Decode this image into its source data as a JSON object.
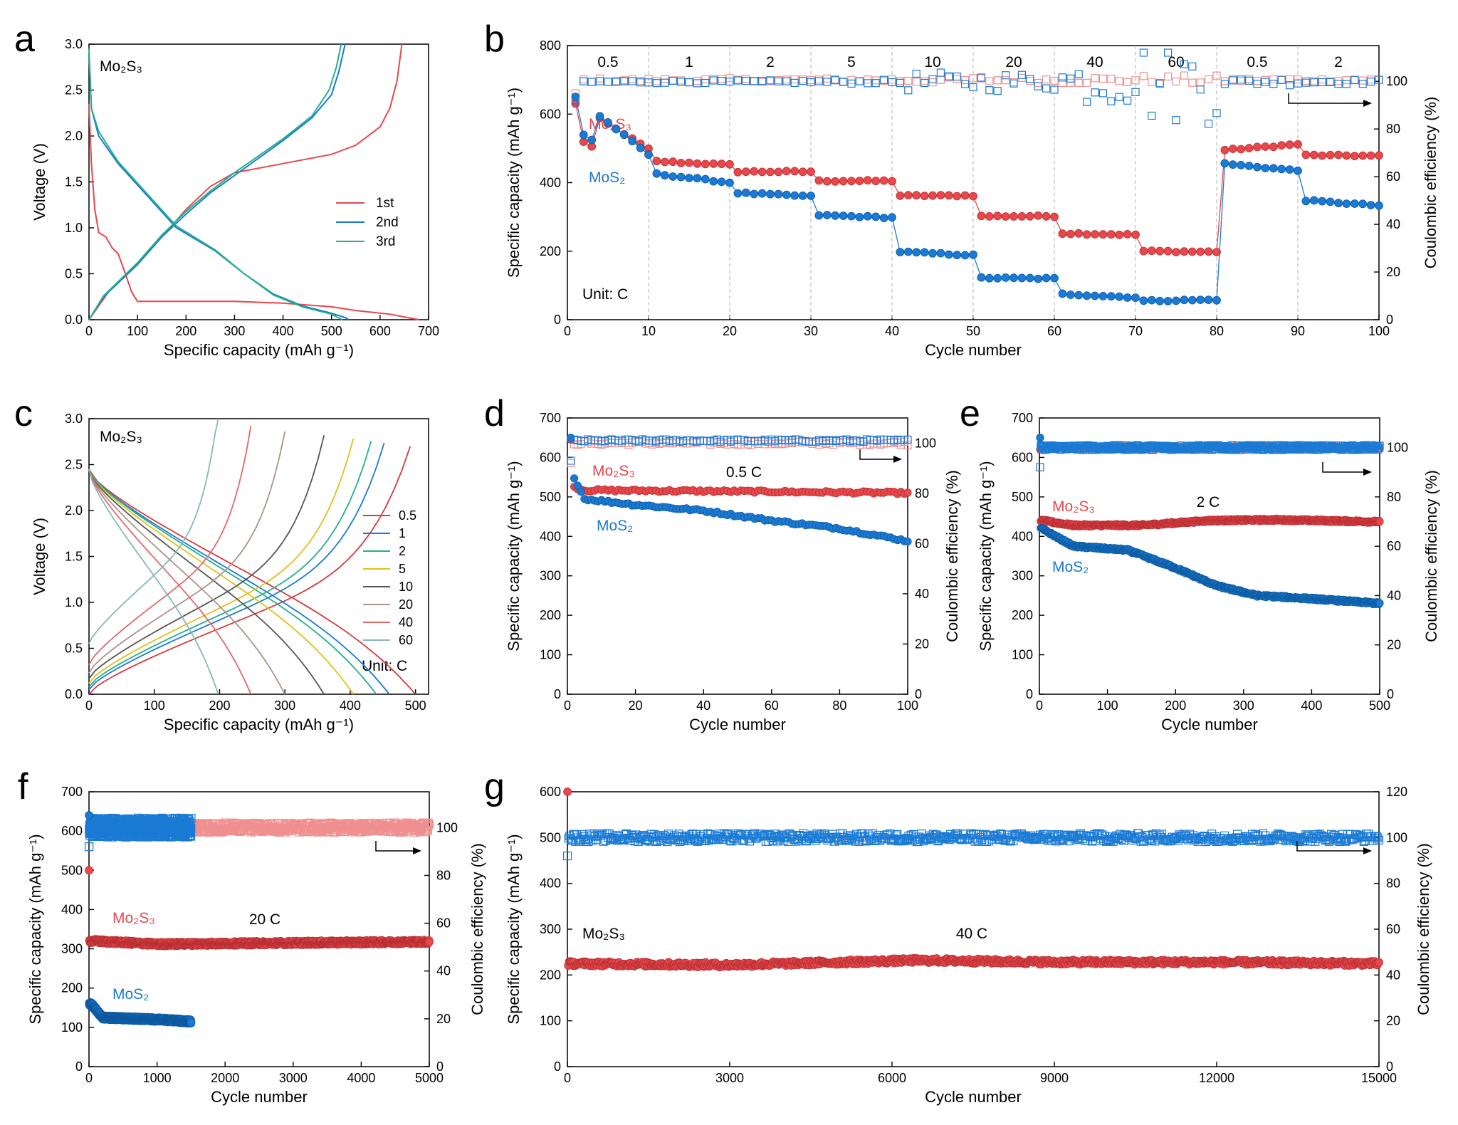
{
  "colors": {
    "mo2s3": "#e8474b",
    "mos2": "#1a7ad4",
    "axis": "#000000",
    "divider": "#bdbdbd"
  },
  "labels": {
    "voltage": "Voltage (V)",
    "cap_x": "Specific capacity (mAh g⁻¹)",
    "cap_y": "Specific capacity (mAh g⁻¹)",
    "ce": "Coulombic efficiency (%)",
    "cycle": "Cycle number"
  },
  "chart_data": [
    {
      "id": "a",
      "panel_label": "a",
      "type": "line",
      "sample_label": "Mo₂S₃",
      "xlim": [
        0,
        700
      ],
      "ylim": [
        0,
        3.0
      ],
      "xticks": [
        0,
        100,
        200,
        300,
        400,
        500,
        600,
        700
      ],
      "yticks": [
        0.0,
        0.5,
        1.0,
        1.5,
        2.0,
        2.5,
        3.0
      ],
      "legend": [
        "1st",
        "2nd",
        "3rd"
      ],
      "series": [
        {
          "name": "1st",
          "color": "#e8474b",
          "discharge": [
            [
              0,
              2.35
            ],
            [
              5,
              1.7
            ],
            [
              12,
              1.2
            ],
            [
              20,
              0.95
            ],
            [
              35,
              0.9
            ],
            [
              48,
              0.78
            ],
            [
              60,
              0.72
            ],
            [
              75,
              0.5
            ],
            [
              88,
              0.3
            ],
            [
              100,
              0.2
            ],
            [
              200,
              0.2
            ],
            [
              300,
              0.2
            ],
            [
              400,
              0.18
            ],
            [
              500,
              0.14
            ],
            [
              550,
              0.1
            ],
            [
              620,
              0.06
            ],
            [
              680,
              0
            ]
          ],
          "charge": [
            [
              0,
              0
            ],
            [
              40,
              0.3
            ],
            [
              100,
              0.6
            ],
            [
              150,
              0.9
            ],
            [
              200,
              1.2
            ],
            [
              250,
              1.45
            ],
            [
              300,
              1.6
            ],
            [
              400,
              1.7
            ],
            [
              500,
              1.8
            ],
            [
              550,
              1.9
            ],
            [
              600,
              2.1
            ],
            [
              620,
              2.3
            ],
            [
              635,
              2.6
            ],
            [
              645,
              3.0
            ]
          ]
        },
        {
          "name": "2nd",
          "color": "#1a7ad4",
          "discharge": [
            [
              0,
              2.9
            ],
            [
              5,
              2.3
            ],
            [
              20,
              2.0
            ],
            [
              60,
              1.7
            ],
            [
              120,
              1.35
            ],
            [
              180,
              1.0
            ],
            [
              260,
              0.75
            ],
            [
              320,
              0.5
            ],
            [
              380,
              0.28
            ],
            [
              440,
              0.15
            ],
            [
              500,
              0.07
            ],
            [
              530,
              0.02
            ],
            [
              535,
              0
            ]
          ],
          "charge": [
            [
              0,
              0
            ],
            [
              30,
              0.25
            ],
            [
              100,
              0.6
            ],
            [
              150,
              0.9
            ],
            [
              200,
              1.15
            ],
            [
              250,
              1.38
            ],
            [
              300,
              1.57
            ],
            [
              400,
              1.95
            ],
            [
              460,
              2.2
            ],
            [
              500,
              2.45
            ],
            [
              515,
              2.7
            ],
            [
              528,
              3.0
            ]
          ]
        },
        {
          "name": "3rd",
          "color": "#22b08a",
          "discharge": [
            [
              0,
              2.95
            ],
            [
              5,
              2.3
            ],
            [
              20,
              2.05
            ],
            [
              60,
              1.72
            ],
            [
              120,
              1.37
            ],
            [
              180,
              1.02
            ],
            [
              260,
              0.76
            ],
            [
              320,
              0.5
            ],
            [
              380,
              0.27
            ],
            [
              440,
              0.14
            ],
            [
              500,
              0.06
            ],
            [
              522,
              0
            ]
          ],
          "charge": [
            [
              0,
              0
            ],
            [
              30,
              0.26
            ],
            [
              100,
              0.62
            ],
            [
              150,
              0.92
            ],
            [
              200,
              1.18
            ],
            [
              250,
              1.4
            ],
            [
              300,
              1.6
            ],
            [
              400,
              1.97
            ],
            [
              460,
              2.22
            ],
            [
              495,
              2.5
            ],
            [
              510,
              2.75
            ],
            [
              520,
              3.0
            ]
          ]
        }
      ]
    },
    {
      "id": "b",
      "panel_label": "b",
      "type": "scatter",
      "xlim": [
        0,
        100
      ],
      "ylim": [
        0,
        800
      ],
      "y2lim": [
        0,
        115
      ],
      "xticks": [
        0,
        10,
        20,
        30,
        40,
        50,
        60,
        70,
        80,
        90,
        100
      ],
      "yticks": [
        0,
        200,
        400,
        600,
        800
      ],
      "y2ticks": [
        0,
        20,
        40,
        60,
        80,
        100
      ],
      "rates": [
        "0.5",
        "1",
        "2",
        "5",
        "10",
        "20",
        "40",
        "60",
        "0.5",
        "2"
      ],
      "unit": "Unit: C",
      "mo2s3_label": "Mo₂S₃",
      "mos2_label": "MoS₂",
      "series": [
        {
          "name": "Mo₂S₃",
          "color": "#e8474b",
          "levels": [
            [
              1,
              10,
              630,
              498
            ],
            [
              11,
              20,
              462,
              452
            ],
            [
              21,
              30,
              432,
              432
            ],
            [
              31,
              40,
              405,
              405
            ],
            [
              41,
              50,
              362,
              362
            ],
            [
              51,
              60,
              302,
              302
            ],
            [
              61,
              70,
              252,
              248
            ],
            [
              71,
              80,
              200,
              198
            ],
            [
              81,
              90,
              495,
              512
            ],
            [
              91,
              100,
              480,
              478
            ]
          ],
          "ce_mean": 100.5,
          "ce_noise": [
            0.8,
            0.8,
            0.8,
            0.8,
            1.2,
            1.2,
            1.5,
            2.0,
            0.8,
            0.6
          ]
        },
        {
          "name": "MoS₂",
          "color": "#1a7ad4",
          "levels": [
            [
              1,
              10,
              650,
              482
            ],
            [
              11,
              20,
              425,
              400
            ],
            [
              21,
              30,
              370,
              360
            ],
            [
              31,
              40,
              305,
              298
            ],
            [
              41,
              50,
              198,
              188
            ],
            [
              51,
              60,
              122,
              120
            ],
            [
              61,
              70,
              75,
              65
            ],
            [
              71,
              80,
              55,
              58
            ],
            [
              81,
              90,
              455,
              435
            ],
            [
              91,
              100,
              348,
              333
            ]
          ],
          "ce_mean": 99.8,
          "ce_noise": [
            0.6,
            0.6,
            0.6,
            0.8,
            4,
            4,
            10,
            18,
            1.5,
            1.0
          ]
        }
      ]
    },
    {
      "id": "c",
      "panel_label": "c",
      "type": "line",
      "sample_label": "Mo₂S₃",
      "xlim": [
        0,
        520
      ],
      "ylim": [
        0,
        3.0
      ],
      "xticks": [
        0,
        100,
        200,
        300,
        400,
        500
      ],
      "yticks": [
        0.0,
        0.5,
        1.0,
        1.5,
        2.0,
        2.5,
        3.0
      ],
      "unit": "Unit: C",
      "legend": [
        "0.5",
        "1",
        "2",
        "5",
        "10",
        "20",
        "40",
        "60"
      ],
      "series": [
        {
          "name": "0.5",
          "color": "#d43a3e",
          "cap": 500,
          "cmax": 492,
          "v0": 0.0
        },
        {
          "name": "1",
          "color": "#1a7ad4",
          "cap": 460,
          "cmax": 452,
          "v0": 0.05
        },
        {
          "name": "2",
          "color": "#22b08a",
          "cap": 440,
          "cmax": 432,
          "v0": 0.08
        },
        {
          "name": "5",
          "color": "#e3bf1a",
          "cap": 405,
          "cmax": 405,
          "v0": 0.12
        },
        {
          "name": "10",
          "color": "#555555",
          "cap": 360,
          "cmax": 360,
          "v0": 0.17
        },
        {
          "name": "20",
          "color": "#a8948a",
          "cap": 300,
          "cmax": 300,
          "v0": 0.23
        },
        {
          "name": "40",
          "color": "#e06a6a",
          "cap": 248,
          "cmax": 248,
          "v0": 0.32
        },
        {
          "name": "60",
          "color": "#86b8b4",
          "cap": 198,
          "cmax": 198,
          "v0": 0.55
        }
      ]
    },
    {
      "id": "d",
      "panel_label": "d",
      "type": "scatter",
      "xlim": [
        0,
        100
      ],
      "ylim": [
        0,
        700
      ],
      "y2lim": [
        0,
        110
      ],
      "xticks": [
        0,
        20,
        40,
        60,
        80,
        100
      ],
      "yticks": [
        0,
        100,
        200,
        300,
        400,
        500,
        600,
        700
      ],
      "y2ticks": [
        0,
        20,
        40,
        60,
        80,
        100
      ],
      "rate_label": "0.5 C",
      "mo2s3_label": "Mo₂S₃",
      "mos2_label": "MoS₂",
      "series": [
        {
          "name": "Mo₂S₃",
          "color": "#e8474b",
          "first": 645,
          "points": [
            [
              2,
              525
            ],
            [
              5,
              517
            ],
            [
              20,
              516
            ],
            [
              50,
              514
            ],
            [
              100,
              510
            ]
          ],
          "ce_mean": 100,
          "ce_noise": 0.8,
          "n": 100
        },
        {
          "name": "MoS₂",
          "color": "#1a7ad4",
          "first": 650,
          "points": [
            [
              2,
              550
            ],
            [
              5,
              495
            ],
            [
              20,
              480
            ],
            [
              40,
              465
            ],
            [
              60,
              440
            ],
            [
              80,
              420
            ],
            [
              100,
              388
            ]
          ],
          "ce_mean": 101,
          "ce_noise": 0.5,
          "n": 100
        }
      ]
    },
    {
      "id": "e",
      "panel_label": "e",
      "type": "scatter",
      "xlim": [
        0,
        500
      ],
      "ylim": [
        0,
        700
      ],
      "y2lim": [
        0,
        112
      ],
      "xticks": [
        0,
        100,
        200,
        300,
        400,
        500
      ],
      "yticks": [
        0,
        100,
        200,
        300,
        400,
        500,
        600,
        700
      ],
      "y2ticks": [
        0,
        20,
        40,
        60,
        80,
        100
      ],
      "rate_label": "2 C",
      "mo2s3_label": "Mo₂S₃",
      "mos2_label": "MoS₂",
      "series": [
        {
          "name": "Mo₂S₃",
          "color": "#e8474b",
          "first": 620,
          "points": [
            [
              3,
              440
            ],
            [
              50,
              428
            ],
            [
              150,
              428
            ],
            [
              250,
              440
            ],
            [
              350,
              442
            ],
            [
              500,
              437
            ]
          ],
          "ce_mean": 100,
          "ce_noise": 0.6,
          "n": 500
        },
        {
          "name": "MoS₂",
          "color": "#1a7ad4",
          "first": 650,
          "points": [
            [
              3,
              420
            ],
            [
              50,
              375
            ],
            [
              130,
              365
            ],
            [
              200,
              320
            ],
            [
              260,
              275
            ],
            [
              320,
              250
            ],
            [
              400,
              242
            ],
            [
              500,
              230
            ]
          ],
          "ce_mean": 100,
          "ce_noise": 1.0,
          "n": 500
        }
      ]
    },
    {
      "id": "f",
      "panel_label": "f",
      "type": "scatter",
      "xlim": [
        0,
        5000
      ],
      "ylim": [
        0,
        700
      ],
      "y2lim": [
        0,
        115
      ],
      "xticks": [
        0,
        1000,
        2000,
        3000,
        4000,
        5000
      ],
      "yticks": [
        0,
        100,
        200,
        300,
        400,
        500,
        600,
        700
      ],
      "y2ticks": [
        0,
        20,
        40,
        60,
        80,
        100
      ],
      "rate_label": "20 C",
      "mo2s3_label": "Mo₂S₃",
      "mos2_label": "MoS₂",
      "series": [
        {
          "name": "Mo₂S₃",
          "color": "#e8474b",
          "first": 500,
          "points": [
            [
              50,
              320
            ],
            [
              1000,
              312
            ],
            [
              3000,
              315
            ],
            [
              5000,
              318
            ]
          ],
          "ce_mean": 100,
          "ce_noise": 2.0,
          "n": 5000
        },
        {
          "name": "MoS₂",
          "color": "#1a7ad4",
          "first": 640,
          "points": [
            [
              30,
              160
            ],
            [
              200,
              125
            ],
            [
              1000,
              120
            ],
            [
              1500,
              115
            ]
          ],
          "ce_mean": 100,
          "ce_noise": 4.0,
          "n": 1500
        }
      ]
    },
    {
      "id": "g",
      "panel_label": "g",
      "type": "scatter",
      "xlim": [
        0,
        15000
      ],
      "ylim": [
        0,
        600
      ],
      "y2lim": [
        0,
        120
      ],
      "xticks": [
        0,
        3000,
        6000,
        9000,
        12000,
        15000
      ],
      "yticks": [
        0,
        100,
        200,
        300,
        400,
        500,
        600
      ],
      "y2ticks": [
        0,
        20,
        40,
        60,
        80,
        100,
        120
      ],
      "rate_label": "40 C",
      "mo2s3_label": "Mo₂S₃",
      "series": [
        {
          "name": "Mo₂S₃",
          "color": "#e8474b",
          "first": 600,
          "points": [
            [
              30,
              225
            ],
            [
              3000,
              222
            ],
            [
              6500,
              232
            ],
            [
              9000,
              228
            ],
            [
              12000,
              228
            ],
            [
              15000,
              225
            ]
          ],
          "ce_mean": 100,
          "ce_noise": 1.8,
          "n": 15000
        }
      ]
    }
  ]
}
